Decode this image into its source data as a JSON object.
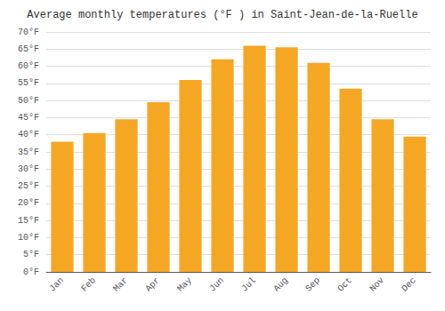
{
  "chart_data": {
    "type": "bar",
    "title": "Average monthly temperatures (°F ) in Saint-Jean-de-la-Ruelle",
    "categories": [
      "Jan",
      "Feb",
      "Mar",
      "Apr",
      "May",
      "Jun",
      "Jul",
      "Aug",
      "Sep",
      "Oct",
      "Nov",
      "Dec"
    ],
    "values": [
      38,
      40.5,
      44.5,
      49.5,
      56,
      62,
      66,
      65.5,
      61,
      53.5,
      44.5,
      39.5
    ],
    "color": "#F5A623",
    "ylim": [
      0,
      70
    ],
    "yticks": [
      {
        "value": 0,
        "label": "0°F"
      },
      {
        "value": 5,
        "label": "5°F"
      },
      {
        "value": 10,
        "label": "10°F"
      },
      {
        "value": 15,
        "label": "15°F"
      },
      {
        "value": 20,
        "label": "20°F"
      },
      {
        "value": 25,
        "label": "25°F"
      },
      {
        "value": 30,
        "label": "30°F"
      },
      {
        "value": 35,
        "label": "35°F"
      },
      {
        "value": 40,
        "label": "40°F"
      },
      {
        "value": 45,
        "label": "45°F"
      },
      {
        "value": 50,
        "label": "50°F"
      },
      {
        "value": 55,
        "label": "55°F"
      },
      {
        "value": 60,
        "label": "60°F"
      },
      {
        "value": 65,
        "label": "65°F"
      },
      {
        "value": 70,
        "label": "70°F"
      }
    ],
    "grid": true
  }
}
